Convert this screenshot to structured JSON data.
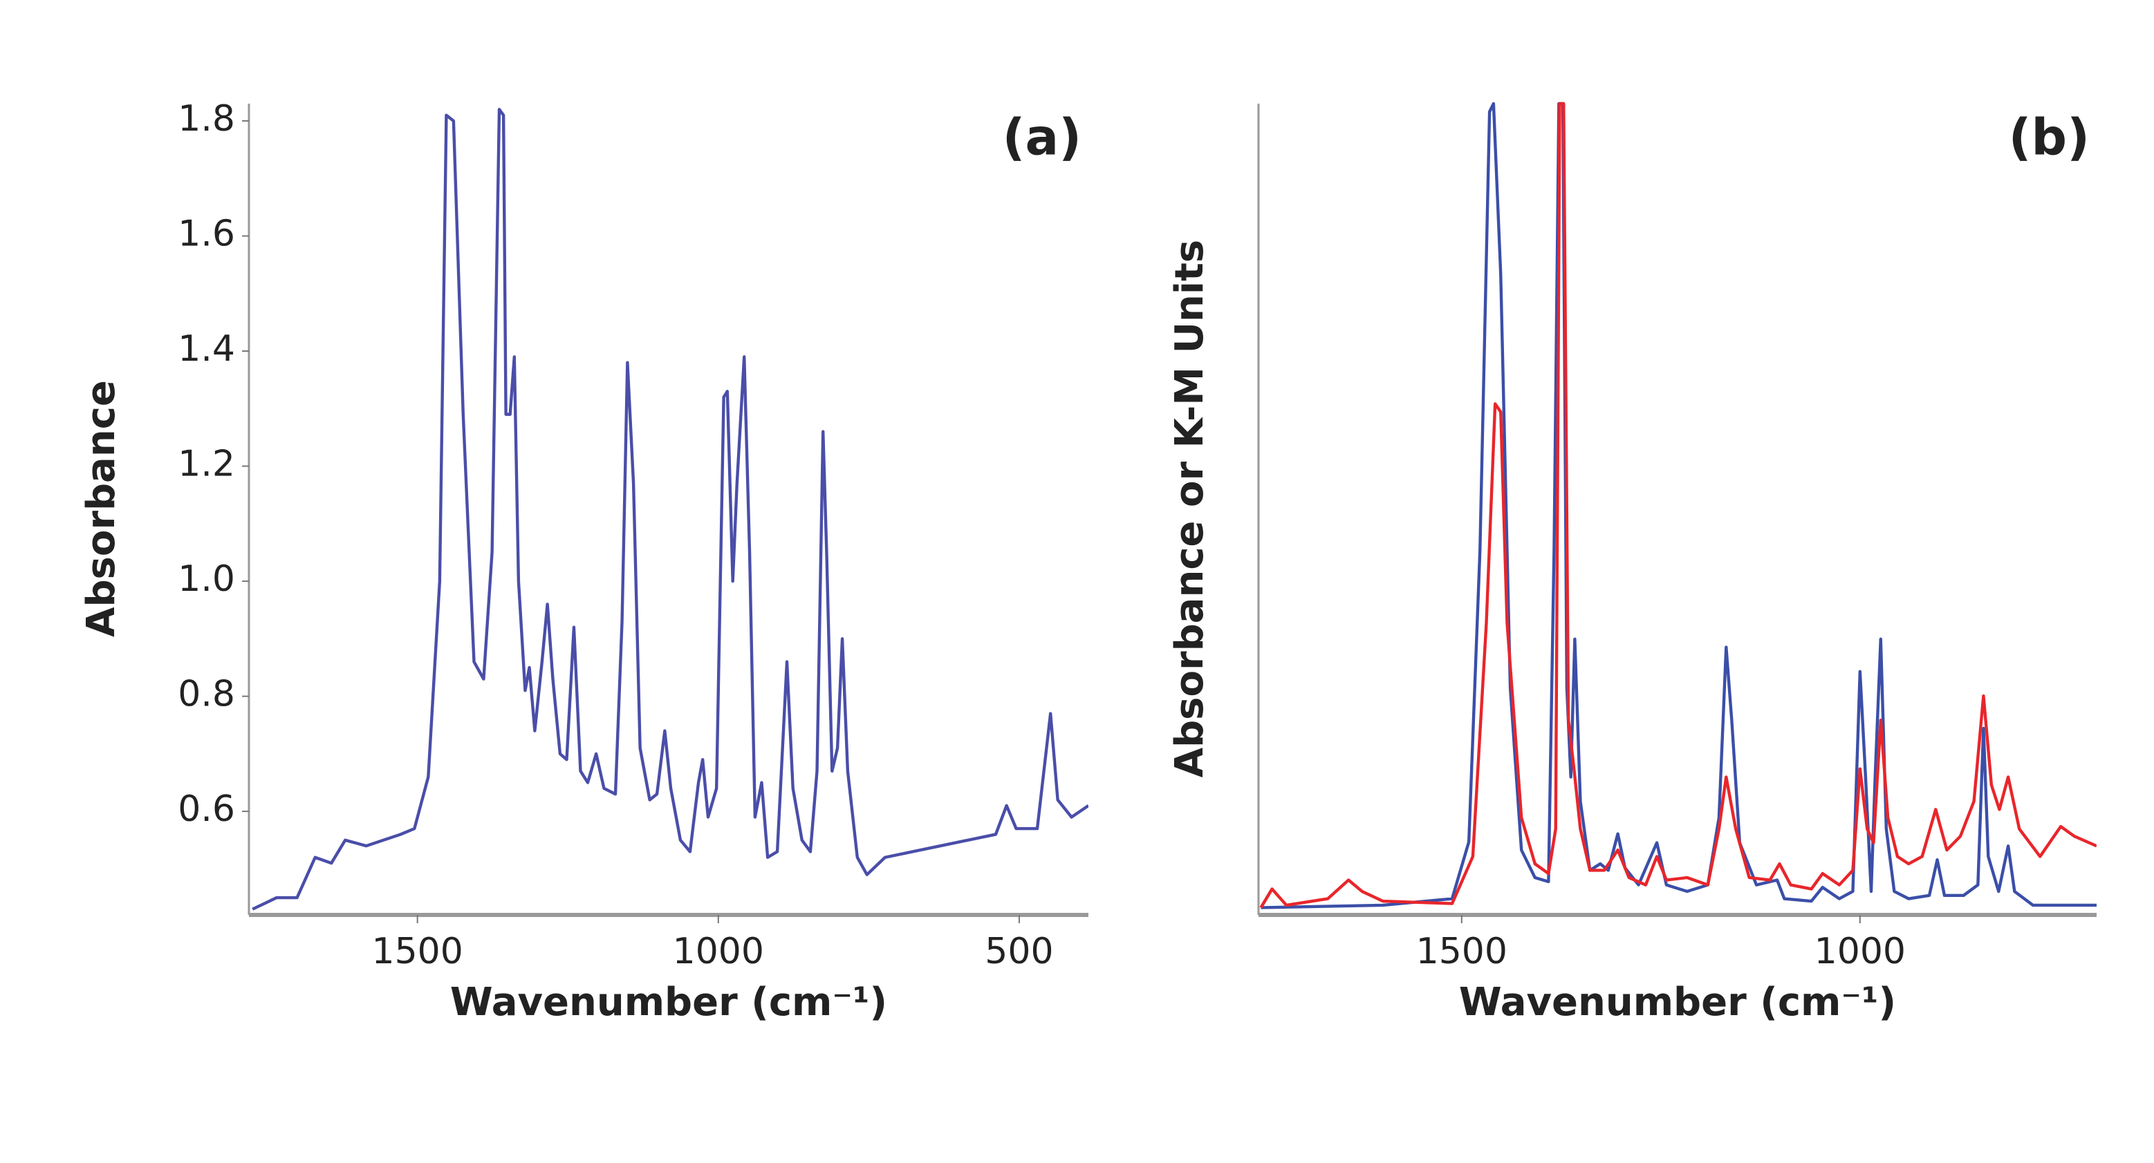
{
  "chart_data": [
    {
      "type": "line",
      "title": "(a)",
      "y_label": "Absorbance",
      "x_label": "Wavenumber (cm⁻¹)",
      "xlim": [
        1780,
        385
      ],
      "xticks": [
        1500,
        1000,
        500
      ],
      "ylim": [
        0.42,
        1.83
      ],
      "yticks": [
        0.6,
        0.8,
        {
          "value": 1,
          "label": "1.0"
        },
        1.2,
        1.4,
        1.6,
        1.8
      ],
      "series": [
        {
          "color": "#4a4ea8",
          "x": [
            1774,
            1734,
            1700,
            1670,
            1643,
            1620,
            1585,
            1528,
            1505,
            1482,
            1463,
            1452,
            1440,
            1424,
            1406,
            1390,
            1376,
            1364,
            1357,
            1353,
            1346,
            1339,
            1332,
            1321,
            1314,
            1305,
            1293,
            1284,
            1275,
            1263,
            1252,
            1240,
            1229,
            1217,
            1203,
            1190,
            1171,
            1160,
            1151,
            1141,
            1130,
            1114,
            1102,
            1089,
            1079,
            1063,
            1047,
            1033,
            1026,
            1017,
            1003,
            991,
            985,
            976,
            969,
            957,
            948,
            939,
            928,
            918,
            902,
            886,
            876,
            861,
            847,
            836,
            826,
            820,
            811,
            802,
            794,
            785,
            769,
            753,
            723,
            631,
            539,
            521,
            505,
            470,
            448,
            436,
            413,
            385
          ],
          "values": [
            0.43,
            0.45,
            0.45,
            0.52,
            0.51,
            0.55,
            0.54,
            0.56,
            0.57,
            0.66,
            1.0,
            1.81,
            1.8,
            1.29,
            0.86,
            0.83,
            1.05,
            1.82,
            1.81,
            1.29,
            1.29,
            1.39,
            1.0,
            0.81,
            0.85,
            0.74,
            0.86,
            0.96,
            0.83,
            0.7,
            0.69,
            0.92,
            0.67,
            0.65,
            0.7,
            0.64,
            0.63,
            0.93,
            1.38,
            1.17,
            0.71,
            0.62,
            0.63,
            0.74,
            0.64,
            0.55,
            0.53,
            0.65,
            0.69,
            0.59,
            0.64,
            1.32,
            1.33,
            1.0,
            1.17,
            1.39,
            1.05,
            0.59,
            0.65,
            0.52,
            0.53,
            0.86,
            0.64,
            0.55,
            0.53,
            0.67,
            1.26,
            1.05,
            0.67,
            0.71,
            0.9,
            0.67,
            0.52,
            0.49,
            0.52,
            0.54,
            0.56,
            0.61,
            0.57,
            0.57,
            0.77,
            0.62,
            0.59,
            0.61
          ]
        }
      ]
    },
    {
      "type": "line",
      "title": "(b)",
      "y_label": "Absorbance or K-M Units",
      "x_label": "Wavenumber (cm⁻¹)",
      "xlim": [
        1755,
        703
      ],
      "xticks": [
        1500,
        1000
      ],
      "ylim": [
        0,
        1
      ],
      "series": [
        {
          "color": "#3b4fa8",
          "x": [
            1752,
            1599,
            1512,
            1491,
            1477,
            1465,
            1460,
            1451,
            1439,
            1425,
            1408,
            1391,
            1384,
            1378,
            1373,
            1368,
            1363,
            1358,
            1351,
            1339,
            1326,
            1316,
            1304,
            1295,
            1278,
            1255,
            1243,
            1217,
            1191,
            1177,
            1168,
            1161,
            1151,
            1130,
            1104,
            1095,
            1061,
            1047,
            1026,
            1009,
            1000,
            993,
            986,
            981,
            974,
            967,
            957,
            939,
            913,
            903,
            894,
            870,
            852,
            845,
            839,
            826,
            814,
            806,
            783,
            703
          ],
          "values": [
            0.009,
            0.012,
            0.02,
            0.09,
            0.45,
            0.99,
            1.0,
            0.79,
            0.28,
            0.08,
            0.046,
            0.041,
            0.45,
            1.0,
            1.0,
            0.28,
            0.17,
            0.34,
            0.14,
            0.055,
            0.063,
            0.055,
            0.1,
            0.058,
            0.037,
            0.089,
            0.037,
            0.029,
            0.037,
            0.12,
            0.33,
            0.24,
            0.089,
            0.037,
            0.043,
            0.02,
            0.017,
            0.034,
            0.02,
            0.029,
            0.3,
            0.17,
            0.029,
            0.17,
            0.34,
            0.106,
            0.029,
            0.02,
            0.024,
            0.068,
            0.024,
            0.024,
            0.037,
            0.23,
            0.072,
            0.029,
            0.085,
            0.029,
            0.012,
            0.012
          ]
        },
        {
          "color": "#e8262b",
          "x": [
            1752,
            1738,
            1720,
            1668,
            1642,
            1625,
            1599,
            1512,
            1486,
            1469,
            1458,
            1451,
            1443,
            1425,
            1408,
            1391,
            1382,
            1377,
            1372,
            1366,
            1359,
            1351,
            1339,
            1321,
            1304,
            1290,
            1269,
            1255,
            1243,
            1217,
            1191,
            1177,
            1168,
            1156,
            1139,
            1113,
            1101,
            1087,
            1061,
            1047,
            1026,
            1009,
            1000,
            991,
            983,
            974,
            965,
            953,
            939,
            922,
            905,
            891,
            874,
            857,
            845,
            835,
            825,
            814,
            800,
            774,
            748,
            731,
            703
          ],
          "values": [
            0.009,
            0.032,
            0.012,
            0.02,
            0.043,
            0.029,
            0.017,
            0.014,
            0.072,
            0.36,
            0.63,
            0.62,
            0.36,
            0.12,
            0.063,
            0.051,
            0.106,
            1.0,
            1.0,
            0.24,
            0.18,
            0.106,
            0.055,
            0.055,
            0.08,
            0.046,
            0.037,
            0.072,
            0.043,
            0.046,
            0.037,
            0.106,
            0.17,
            0.106,
            0.046,
            0.043,
            0.063,
            0.037,
            0.032,
            0.051,
            0.037,
            0.055,
            0.18,
            0.106,
            0.089,
            0.24,
            0.12,
            0.072,
            0.063,
            0.072,
            0.13,
            0.08,
            0.097,
            0.14,
            0.27,
            0.16,
            0.13,
            0.17,
            0.106,
            0.072,
            0.109,
            0.097,
            0.085
          ]
        }
      ]
    }
  ]
}
